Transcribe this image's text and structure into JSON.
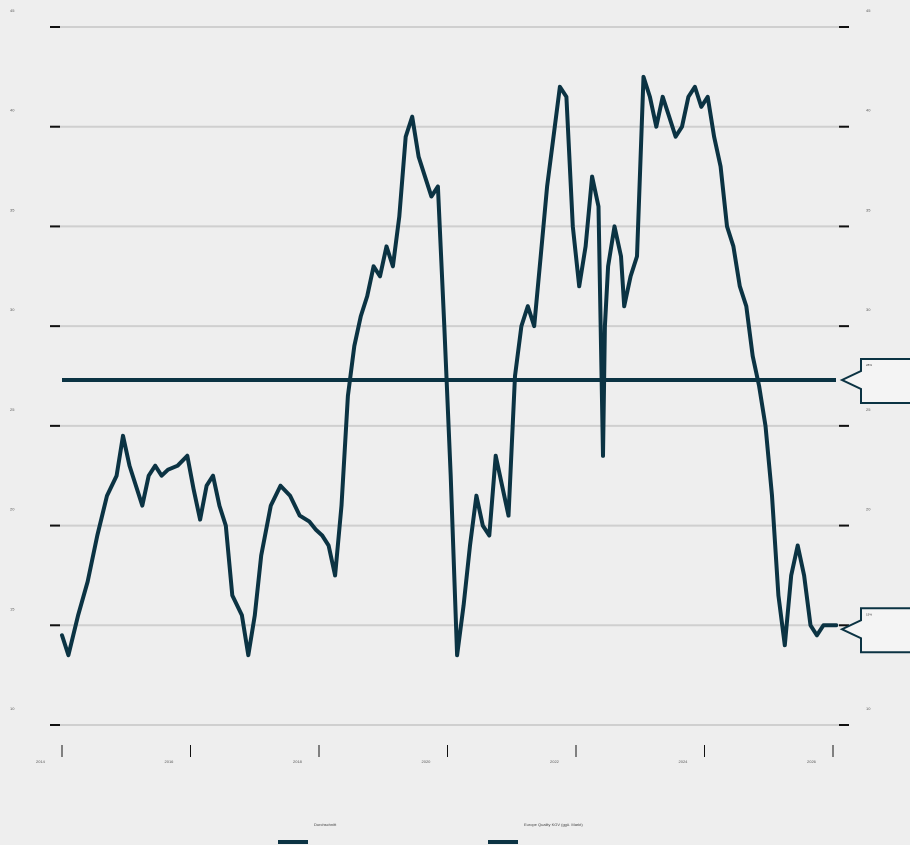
{
  "chart_data": {
    "type": "line",
    "title": "",
    "xlabel": "",
    "ylabel": "",
    "x_ticks": [
      "2014",
      "2016",
      "2018",
      "2020",
      "2022",
      "2024",
      "2026"
    ],
    "y_ticks": [
      10,
      15,
      20,
      25,
      30,
      35,
      40,
      45
    ],
    "left_y_tick_labels": [
      "10",
      "15",
      "20",
      "25",
      "30",
      "35",
      "40",
      "45"
    ],
    "right_y_tick_labels": [
      "10",
      "15",
      "20",
      "25",
      "30",
      "35",
      "40",
      "45"
    ],
    "xlim": [
      2014,
      2026
    ],
    "ylim": [
      10,
      45
    ],
    "grid": true,
    "legend_position": "bottom",
    "legend": [
      {
        "label": "Durchschnitt",
        "color": "#0b3343"
      },
      {
        "label": "Europe Quality KGV (ggü. Markt)",
        "color": "#0b3343"
      }
    ],
    "series": [
      {
        "name": "Europe Quality KGV (ggü. Markt)",
        "color": "#0b3343",
        "x": [
          2014.0,
          2014.1,
          2014.25,
          2014.4,
          2014.55,
          2014.7,
          2014.85,
          2014.95,
          2015.05,
          2015.15,
          2015.25,
          2015.35,
          2015.45,
          2015.55,
          2015.65,
          2015.8,
          2015.95,
          2016.05,
          2016.15,
          2016.25,
          2016.35,
          2016.45,
          2016.55,
          2016.65,
          2016.8,
          2016.9,
          2017.0,
          2017.1,
          2017.25,
          2017.4,
          2017.55,
          2017.7,
          2017.85,
          2017.95,
          2018.05,
          2018.15,
          2018.25,
          2018.35,
          2018.45,
          2018.55,
          2018.65,
          2018.75,
          2018.85,
          2018.95,
          2019.05,
          2019.15,
          2019.25,
          2019.35,
          2019.45,
          2019.55,
          2019.65,
          2019.75,
          2019.85,
          2019.95,
          2020.05,
          2020.15,
          2020.25,
          2020.35,
          2020.45,
          2020.55,
          2020.65,
          2020.75,
          2020.85,
          2020.95,
          2021.05,
          2021.15,
          2021.25,
          2021.35,
          2021.45,
          2021.55,
          2021.65,
          2021.75,
          2021.85,
          2021.95,
          2022.05,
          2022.15,
          2022.25,
          2022.35,
          2022.42,
          2022.45,
          2022.5,
          2022.6,
          2022.7,
          2022.75,
          2022.85,
          2022.95,
          2023.05,
          2023.15,
          2023.25,
          2023.35,
          2023.45,
          2023.55,
          2023.65,
          2023.75,
          2023.85,
          2023.95,
          2024.05,
          2024.15,
          2024.25,
          2024.35,
          2024.45,
          2024.55,
          2024.65,
          2024.75,
          2024.85,
          2024.95,
          2025.05,
          2025.15,
          2025.25,
          2025.35,
          2025.45,
          2025.55,
          2025.65,
          2025.75,
          2025.85,
          2025.95,
          2026.05
        ],
        "y": [
          14.5,
          13.5,
          15.5,
          17.2,
          19.5,
          21.5,
          22.5,
          24.5,
          23.0,
          22.0,
          21.0,
          22.5,
          23.0,
          22.5,
          22.8,
          23.0,
          23.5,
          21.8,
          20.3,
          22.0,
          22.5,
          21.0,
          20.0,
          16.5,
          15.5,
          13.5,
          15.5,
          18.5,
          21.0,
          22.0,
          21.5,
          20.5,
          20.2,
          19.8,
          19.5,
          19.0,
          17.5,
          21.0,
          26.5,
          29.0,
          30.5,
          31.5,
          33.0,
          32.5,
          34.0,
          33.0,
          35.5,
          39.5,
          40.5,
          38.5,
          37.5,
          36.5,
          37.0,
          30.0,
          22.5,
          13.5,
          16.0,
          19.0,
          21.5,
          20.0,
          19.5,
          23.5,
          22.0,
          20.5,
          27.5,
          30.0,
          31.0,
          30.0,
          33.5,
          37.0,
          39.5,
          42.0,
          41.5,
          35.0,
          32.0,
          34.0,
          37.5,
          36.0,
          23.5,
          30.0,
          33.0,
          35.0,
          33.5,
          31.0,
          32.5,
          33.5,
          42.5,
          41.5,
          40.0,
          41.5,
          40.5,
          39.5,
          40.0,
          41.5,
          42.0,
          41.0,
          41.5,
          39.5,
          38.0,
          35.0,
          34.0,
          32.0,
          31.0,
          28.5,
          27.0,
          25.0,
          21.5,
          16.5,
          14.0,
          17.5,
          19.0,
          17.5,
          15.0,
          14.5,
          15.0,
          15.0,
          15.0
        ]
      }
    ],
    "average": {
      "name": "Durchschnitt",
      "value": 27.3,
      "color": "#0b3343"
    },
    "callouts": [
      {
        "label": "28%",
        "value": 27.3
      },
      {
        "label": "15%",
        "value": 14.8
      }
    ]
  }
}
